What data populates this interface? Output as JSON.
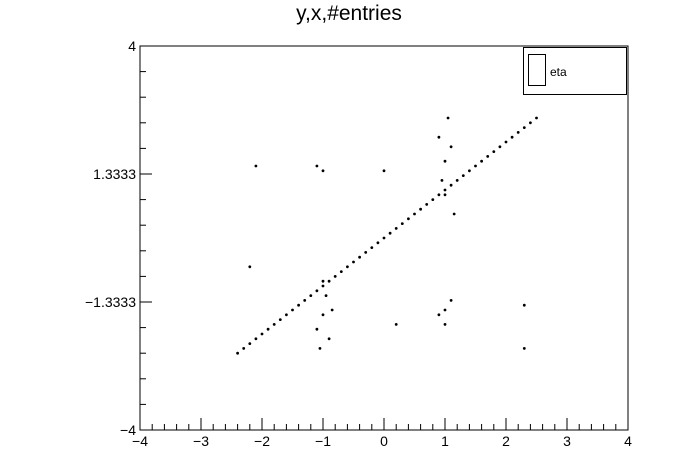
{
  "chart_data": {
    "type": "scatter",
    "title": "y,x,#entries",
    "xlabel": "",
    "ylabel": "",
    "xlim": [
      -4,
      4
    ],
    "ylim": [
      -4,
      4
    ],
    "x_ticks": [
      -4,
      -3,
      -2,
      -1,
      0,
      1,
      2,
      3,
      4
    ],
    "x_tick_labels": [
      "−4",
      "−3",
      "−2",
      "−1",
      "0",
      "1",
      "2",
      "3",
      "4"
    ],
    "y_ticks": [
      -4,
      -1.3333,
      1.3333,
      4
    ],
    "y_tick_labels": [
      "−4",
      "−1.3333",
      "1.3333",
      "4"
    ],
    "grid": false,
    "legend": {
      "position": "top-right",
      "entries": [
        "eta"
      ]
    },
    "series": [
      {
        "name": "eta",
        "points": [
          [
            -2.4,
            -2.4
          ],
          [
            -2.3,
            -2.3
          ],
          [
            -2.2,
            -2.2
          ],
          [
            -2.1,
            -2.1
          ],
          [
            -2.0,
            -2.0
          ],
          [
            -1.9,
            -1.9
          ],
          [
            -1.8,
            -1.8
          ],
          [
            -1.7,
            -1.7
          ],
          [
            -1.6,
            -1.6
          ],
          [
            -1.5,
            -1.5
          ],
          [
            -1.4,
            -1.4
          ],
          [
            -1.3,
            -1.3
          ],
          [
            -1.2,
            -1.2
          ],
          [
            -1.1,
            -1.1
          ],
          [
            -1.0,
            -1.0
          ],
          [
            -0.9,
            -0.9
          ],
          [
            -0.8,
            -0.8
          ],
          [
            -0.7,
            -0.7
          ],
          [
            -0.6,
            -0.6
          ],
          [
            -0.5,
            -0.5
          ],
          [
            -0.4,
            -0.4
          ],
          [
            -0.3,
            -0.3
          ],
          [
            -0.2,
            -0.2
          ],
          [
            -0.1,
            -0.1
          ],
          [
            0.0,
            0.0
          ],
          [
            0.1,
            0.1
          ],
          [
            0.2,
            0.2
          ],
          [
            0.3,
            0.3
          ],
          [
            0.4,
            0.4
          ],
          [
            0.5,
            0.5
          ],
          [
            0.6,
            0.6
          ],
          [
            0.7,
            0.7
          ],
          [
            0.8,
            0.8
          ],
          [
            0.9,
            0.9
          ],
          [
            1.0,
            1.0
          ],
          [
            1.1,
            1.1
          ],
          [
            1.2,
            1.2
          ],
          [
            1.3,
            1.3
          ],
          [
            1.4,
            1.4
          ],
          [
            1.5,
            1.5
          ],
          [
            1.6,
            1.6
          ],
          [
            1.7,
            1.7
          ],
          [
            1.8,
            1.8
          ],
          [
            1.9,
            1.9
          ],
          [
            2.0,
            2.0
          ],
          [
            2.1,
            2.1
          ],
          [
            2.2,
            2.2
          ],
          [
            2.3,
            2.3
          ],
          [
            2.4,
            2.4
          ],
          [
            2.5,
            2.5
          ],
          [
            -1.0,
            -1.6
          ],
          [
            -1.1,
            -1.9
          ],
          [
            -0.9,
            -2.1
          ],
          [
            -1.0,
            -0.9
          ],
          [
            -0.95,
            -1.2
          ],
          [
            -1.05,
            -2.3
          ],
          [
            -0.85,
            -1.5
          ],
          [
            1.0,
            1.6
          ],
          [
            1.1,
            1.9
          ],
          [
            0.9,
            2.1
          ],
          [
            1.0,
            0.9
          ],
          [
            1.05,
            2.5
          ],
          [
            0.95,
            1.2
          ],
          [
            1.15,
            0.5
          ],
          [
            -2.2,
            -0.6
          ],
          [
            -2.1,
            1.5
          ],
          [
            -1.1,
            1.5
          ],
          [
            -1.0,
            1.4
          ],
          [
            0.0,
            1.4
          ],
          [
            2.3,
            -1.4
          ],
          [
            2.3,
            -2.3
          ],
          [
            1.0,
            -1.5
          ],
          [
            1.1,
            -1.3
          ],
          [
            0.2,
            -1.8
          ],
          [
            0.9,
            -1.6
          ],
          [
            1.0,
            -1.8
          ]
        ]
      }
    ]
  }
}
